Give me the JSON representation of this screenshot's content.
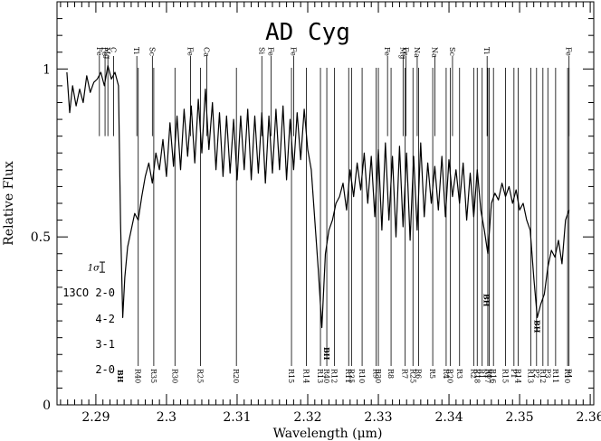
{
  "chart_data": {
    "type": "line",
    "title": "AD Cyg",
    "xlabel": "Wavelength (μm)",
    "ylabel": "Relative Flux",
    "xlim": [
      2.2845,
      2.3605
    ],
    "ylim": [
      0,
      1.2
    ],
    "xticks": [
      2.29,
      2.3,
      2.31,
      2.32,
      2.33,
      2.34,
      2.35,
      2.36
    ],
    "yticks": [
      0,
      0.5,
      1
    ],
    "xtick_labels": [
      "2.29",
      "2.3",
      "2.31",
      "2.32",
      "2.33",
      "2.34",
      "2.35",
      "2.36"
    ],
    "ytick_labels": [
      "0",
      "0.5",
      "1"
    ],
    "grid": false,
    "series": [
      {
        "x": [
          2.2859,
          2.2863,
          2.2867,
          2.2872,
          2.2877,
          2.2882,
          2.2887,
          2.2892,
          2.2897,
          2.2902,
          2.2907,
          2.2912,
          2.2917,
          2.2922,
          2.2927,
          2.2932,
          2.2935,
          2.2938,
          2.2941,
          2.2945,
          2.295,
          2.2955,
          2.296,
          2.2965,
          2.297,
          2.2975,
          2.298,
          2.2985,
          2.299,
          2.2995,
          2.3,
          2.3005,
          2.301,
          2.3015,
          2.302,
          2.3025,
          2.303,
          2.3035,
          2.304,
          2.3045,
          2.305,
          2.3055,
          2.306,
          2.3065,
          2.307,
          2.3075,
          2.308,
          2.3085,
          2.309,
          2.3095,
          2.31,
          2.3105,
          2.311,
          2.3115,
          2.312,
          2.3125,
          2.313,
          2.3135,
          2.314,
          2.3145,
          2.315,
          2.3155,
          2.316,
          2.3165,
          2.317,
          2.3175,
          2.318,
          2.3185,
          2.319,
          2.3195,
          2.32,
          2.3205,
          2.321,
          2.3215,
          2.322,
          2.3225,
          2.323,
          2.3235,
          2.324,
          2.3245,
          2.325,
          2.3255,
          2.326,
          2.3265,
          2.327,
          2.3275,
          2.328,
          2.3285,
          2.329,
          2.3295,
          2.33,
          2.3305,
          2.331,
          2.3315,
          2.332,
          2.3325,
          2.333,
          2.3335,
          2.334,
          2.3345,
          2.335,
          2.3355,
          2.336,
          2.3365,
          2.337,
          2.3375,
          2.338,
          2.3385,
          2.339,
          2.3395,
          2.34,
          2.3405,
          2.341,
          2.3415,
          2.342,
          2.3425,
          2.343,
          2.3435,
          2.344,
          2.3445,
          2.345,
          2.3455,
          2.346,
          2.3465,
          2.347,
          2.3475,
          2.348,
          2.3485,
          2.349,
          2.3495,
          2.35,
          2.3505,
          2.351,
          2.3515,
          2.352,
          2.3525,
          2.353,
          2.3535,
          2.354,
          2.3545,
          2.355,
          2.3555,
          2.356,
          2.3565,
          2.357
        ],
        "y": [
          0.99,
          0.87,
          0.95,
          0.89,
          0.94,
          0.9,
          0.98,
          0.93,
          0.96,
          0.97,
          0.99,
          0.95,
          1.01,
          0.97,
          0.99,
          0.95,
          0.54,
          0.26,
          0.38,
          0.47,
          0.52,
          0.57,
          0.55,
          0.62,
          0.68,
          0.72,
          0.66,
          0.75,
          0.7,
          0.79,
          0.68,
          0.84,
          0.71,
          0.86,
          0.7,
          0.88,
          0.74,
          0.89,
          0.72,
          0.91,
          0.75,
          0.94,
          0.76,
          0.9,
          0.7,
          0.87,
          0.68,
          0.86,
          0.69,
          0.85,
          0.67,
          0.86,
          0.7,
          0.88,
          0.67,
          0.86,
          0.69,
          0.87,
          0.66,
          0.86,
          0.69,
          0.88,
          0.7,
          0.89,
          0.67,
          0.85,
          0.7,
          0.87,
          0.73,
          0.88,
          0.76,
          0.7,
          0.55,
          0.4,
          0.23,
          0.45,
          0.52,
          0.55,
          0.6,
          0.62,
          0.66,
          0.58,
          0.7,
          0.62,
          0.72,
          0.64,
          0.75,
          0.6,
          0.74,
          0.56,
          0.76,
          0.52,
          0.78,
          0.55,
          0.74,
          0.5,
          0.77,
          0.53,
          0.75,
          0.49,
          0.74,
          0.52,
          0.78,
          0.56,
          0.72,
          0.6,
          0.71,
          0.58,
          0.74,
          0.56,
          0.73,
          0.62,
          0.7,
          0.6,
          0.72,
          0.55,
          0.69,
          0.56,
          0.7,
          0.58,
          0.52,
          0.45,
          0.6,
          0.63,
          0.61,
          0.66,
          0.62,
          0.65,
          0.6,
          0.64,
          0.58,
          0.6,
          0.55,
          0.52,
          0.38,
          0.26,
          0.3,
          0.33,
          0.41,
          0.46,
          0.44,
          0.49,
          0.42,
          0.55,
          0.58
        ]
      }
    ],
    "atomic_lines": [
      {
        "label": "Fe",
        "x": 2.2905
      },
      {
        "label": "Fe",
        "x": 2.2913
      },
      {
        "label": "Mg",
        "x": 2.2917
      },
      {
        "label": "C",
        "x": 2.2925
      },
      {
        "label": "Ti",
        "x": 2.2958
      },
      {
        "label": "Sc",
        "x": 2.298
      },
      {
        "label": "Fe",
        "x": 2.3034
      },
      {
        "label": "Ca",
        "x": 2.3057
      },
      {
        "label": "Si",
        "x": 2.3135
      },
      {
        "label": "Fe",
        "x": 2.3148
      },
      {
        "label": "Fe",
        "x": 2.318
      },
      {
        "label": "Fe",
        "x": 2.3313
      },
      {
        "label": "Mg",
        "x": 2.3335
      },
      {
        "label": "Fe",
        "x": 2.3339
      },
      {
        "label": "Na",
        "x": 2.3355
      },
      {
        "label": "Na",
        "x": 2.338
      },
      {
        "label": "Sc",
        "x": 2.3405
      },
      {
        "label": "Ti",
        "x": 2.3454
      },
      {
        "label": "Fe",
        "x": 2.357
      }
    ],
    "band_rows": [
      {
        "label": "2-0",
        "bandhead_label": "BH",
        "bandhead_x": 2.2935
      },
      {
        "label": "3-1",
        "bandhead_label": "BH",
        "bandhead_x": 2.3227
      },
      {
        "label": "4-2",
        "bandhead_label": "BH",
        "bandhead_x": 2.3525
      },
      {
        "label": "13CO 2-0",
        "bandhead_label": "BH",
        "bandhead_x": 2.3453
      }
    ],
    "co_line_labels": [
      {
        "label": "R40",
        "x": 2.296
      },
      {
        "label": "R35",
        "x": 2.2982
      },
      {
        "label": "R30",
        "x": 2.3012
      },
      {
        "label": "R25",
        "x": 2.3048
      },
      {
        "label": "R20",
        "x": 2.3099
      },
      {
        "label": "R15",
        "x": 2.3177
      },
      {
        "label": "R14",
        "x": 2.3198
      },
      {
        "label": "R13",
        "x": 2.3218
      },
      {
        "label": "R40",
        "x": 2.3227
      },
      {
        "label": "R12",
        "x": 2.3238
      },
      {
        "label": "R11",
        "x": 2.3258
      },
      {
        "label": "R35",
        "x": 2.3262
      },
      {
        "label": "R10",
        "x": 2.3277
      },
      {
        "label": "R9",
        "x": 2.3297
      },
      {
        "label": "R30",
        "x": 2.33
      },
      {
        "label": "R8",
        "x": 2.3318
      },
      {
        "label": "R7",
        "x": 2.3338
      },
      {
        "label": "R25",
        "x": 2.3349
      },
      {
        "label": "R6",
        "x": 2.3357
      },
      {
        "label": "R5",
        "x": 2.3377
      },
      {
        "label": "R4",
        "x": 2.3396
      },
      {
        "label": "R20",
        "x": 2.3402
      },
      {
        "label": "R3",
        "x": 2.3415
      },
      {
        "label": "R2",
        "x": 2.3435
      },
      {
        "label": "R18",
        "x": 2.344
      },
      {
        "label": "R1",
        "x": 2.3447
      },
      {
        "label": "R17",
        "x": 2.3455
      },
      {
        "label": "R0",
        "x": 2.3457
      },
      {
        "label": "R16",
        "x": 2.3463
      },
      {
        "label": "R15",
        "x": 2.348
      },
      {
        "label": "P1",
        "x": 2.3492
      },
      {
        "label": "R14",
        "x": 2.3498
      },
      {
        "label": "R13",
        "x": 2.3516
      },
      {
        "label": "P2",
        "x": 2.3524
      },
      {
        "label": "R12",
        "x": 2.3533
      },
      {
        "label": "P3",
        "x": 2.354
      },
      {
        "label": "R11",
        "x": 2.3551
      },
      {
        "label": "R10",
        "x": 2.3568
      },
      {
        "label": "P4",
        "x": 2.357
      }
    ],
    "error_bar": {
      "label": "1σ",
      "y": 0.41,
      "half_height": 0.015
    }
  }
}
